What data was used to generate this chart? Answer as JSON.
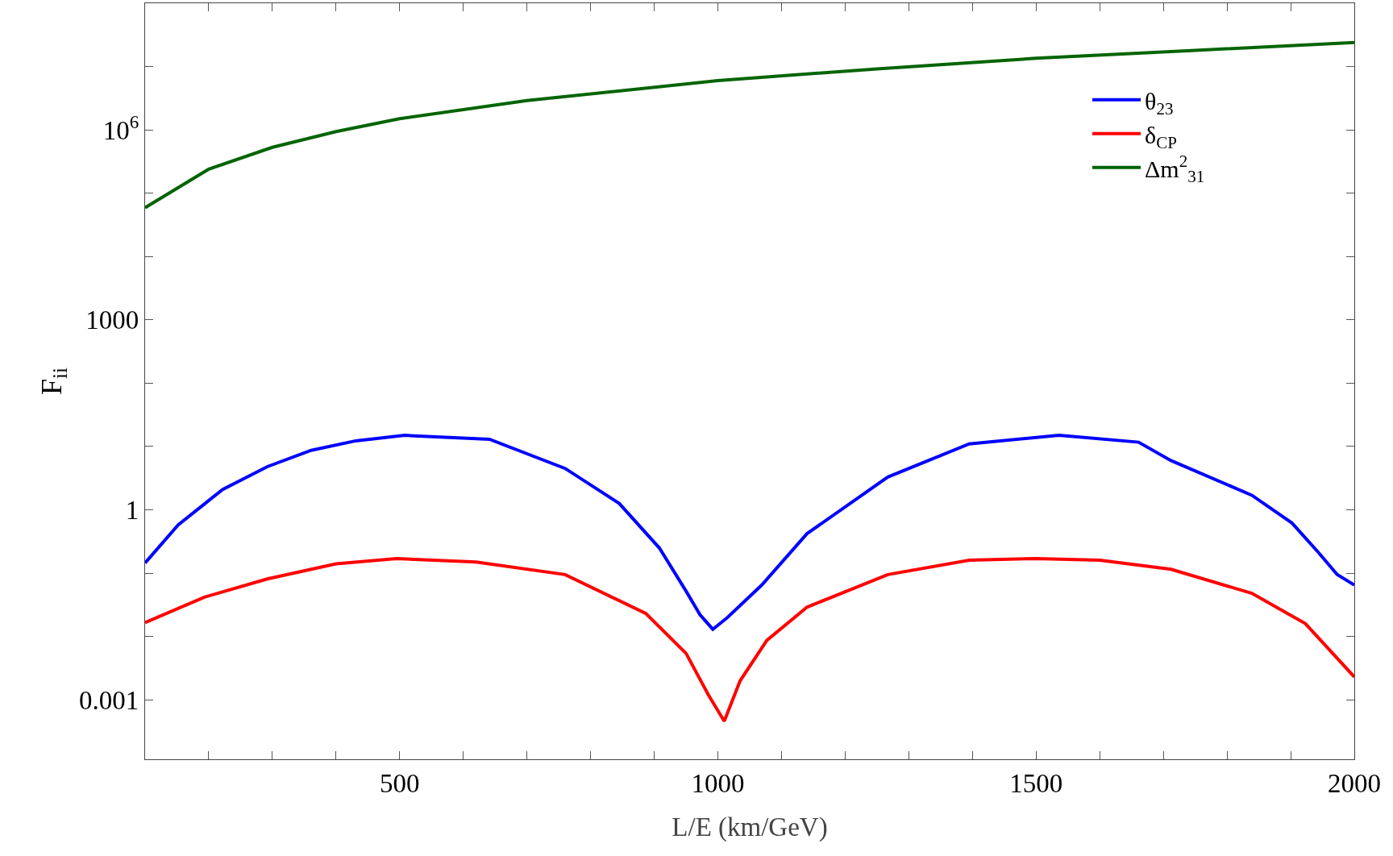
{
  "chart_data": {
    "type": "line",
    "xlabel": "L/E (km/GeV)",
    "ylabel": "F$_{ii}$",
    "log": "y",
    "grid": false,
    "legend": "top right",
    "line_style": "solid",
    "marker": "none",
    "xlim": [
      100,
      2000
    ],
    "ylim": [
      0.000115,
      100000000
    ],
    "xticks": [
      {
        "value": 100,
        "label": null
      },
      {
        "value": 200,
        "label": null
      },
      {
        "value": 300,
        "label": null
      },
      {
        "value": 400,
        "label": null
      },
      500,
      {
        "value": 600,
        "label": null
      },
      {
        "value": 700,
        "label": null
      },
      {
        "value": 800,
        "label": null
      },
      {
        "value": 900,
        "label": null
      },
      1000,
      {
        "value": 1100,
        "label": null
      },
      {
        "value": 1200,
        "label": null
      },
      {
        "value": 1300,
        "label": null
      },
      {
        "value": 1400,
        "label": null
      },
      1500,
      {
        "value": 1600,
        "label": null
      },
      {
        "value": 1700,
        "label": null
      },
      {
        "value": 1800,
        "label": null
      },
      {
        "value": 1900,
        "label": null
      },
      2000
    ],
    "yticks": [
      0.001,
      {
        "value": 0.01,
        "label": null
      },
      {
        "value": 0.1,
        "label": null
      },
      1,
      {
        "value": 10,
        "label": null
      },
      {
        "value": 100,
        "label": null
      },
      1000,
      {
        "value": 10000,
        "label": null
      },
      {
        "value": 100000,
        "label": null
      },
      {
        "value": 1000000,
        "label": "10$^{6}$"
      },
      {
        "value": 10000000,
        "label": null
      }
    ],
    "series": [
      {
        "name": "θ$_{23}$",
        "color": "#0000ff",
        "x": [
          100,
          152,
          222,
          292,
          361,
          431,
          508,
          641,
          760,
          845,
          908,
          950,
          972,
          992,
          1014,
          1069,
          1140,
          1267,
          1395,
          1536,
          1661,
          1712,
          1839,
          1902,
          1944,
          1973,
          2000
        ],
        "values": [
          0.145,
          0.58,
          2.1,
          4.8,
          8.7,
          12.3,
          15,
          13,
          4.5,
          1.26,
          0.25,
          0.052,
          0.022,
          0.013,
          0.0195,
          0.065,
          0.42,
          3.3,
          11,
          15,
          11.7,
          6,
          1.7,
          0.62,
          0.21,
          0.095,
          0.065
        ]
      },
      {
        "name": "δ$_{CP}$",
        "color": "#ff0000",
        "x": [
          100,
          194,
          292,
          400,
          495,
          620,
          760,
          887,
          950,
          985,
          1010,
          1035,
          1077,
          1140,
          1267,
          1395,
          1500,
          1600,
          1712,
          1839,
          1923,
          2000
        ],
        "values": [
          0.0166,
          0.042,
          0.081,
          0.14,
          0.17,
          0.15,
          0.095,
          0.023,
          0.0054,
          0.0012,
          0.00046,
          0.002,
          0.0087,
          0.029,
          0.095,
          0.16,
          0.17,
          0.16,
          0.115,
          0.048,
          0.016,
          0.0023
        ]
      },
      {
        "name": "Δm$^{2}$$_{31}$",
        "color": "#006400",
        "x": [
          100,
          200,
          300,
          400,
          500,
          700,
          1000,
          1250,
          1500,
          1750,
          2000
        ],
        "values": [
          59000,
          240000,
          530000,
          940000,
          1500000,
          2900000,
          6000000,
          9200000,
          13500000,
          18000000,
          24000000
        ]
      }
    ]
  }
}
